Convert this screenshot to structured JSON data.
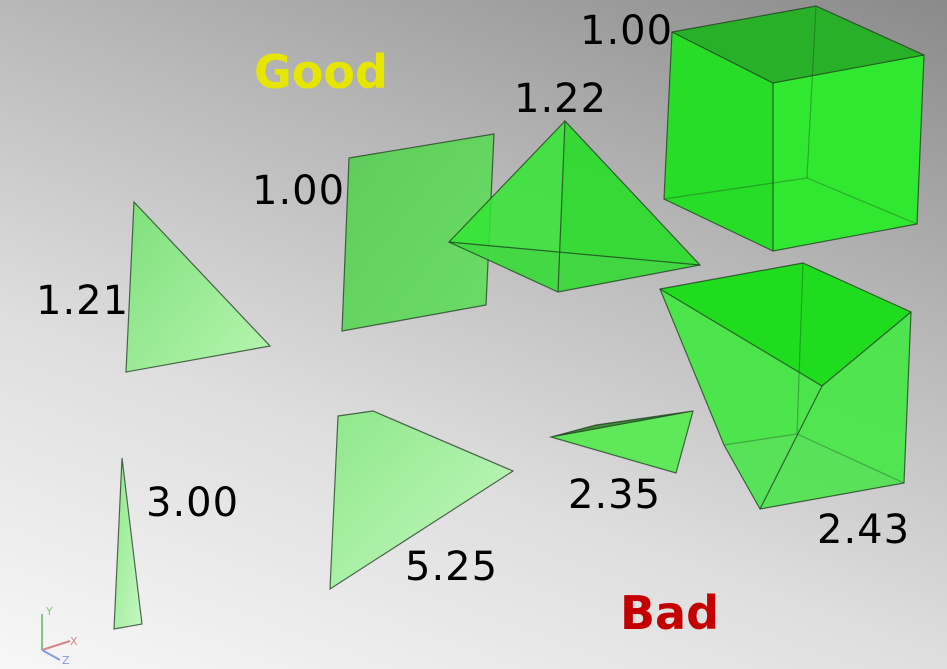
{
  "headings": {
    "good": {
      "text": "Good",
      "color": "#e6e600"
    },
    "bad": {
      "text": "Bad",
      "color": "#c40000"
    }
  },
  "shapes": {
    "triangle_left": {
      "label": "1.21"
    },
    "square": {
      "label": "1.00"
    },
    "tetrahedron": {
      "label": "1.22"
    },
    "cube": {
      "label": "1.00"
    },
    "sliver_triangle": {
      "label": "3.00"
    },
    "wide_triangle": {
      "label": "5.25"
    },
    "flat_tetrahedron": {
      "label": "2.35"
    },
    "distorted_hexahedron": {
      "label": "2.43"
    }
  },
  "colors": {
    "element_light": "#b4f5b0",
    "element_solid": "#22e622",
    "edge": "#1f3a1f"
  },
  "axis_triad": {
    "x": "X",
    "y": "Y",
    "z": "Z"
  }
}
